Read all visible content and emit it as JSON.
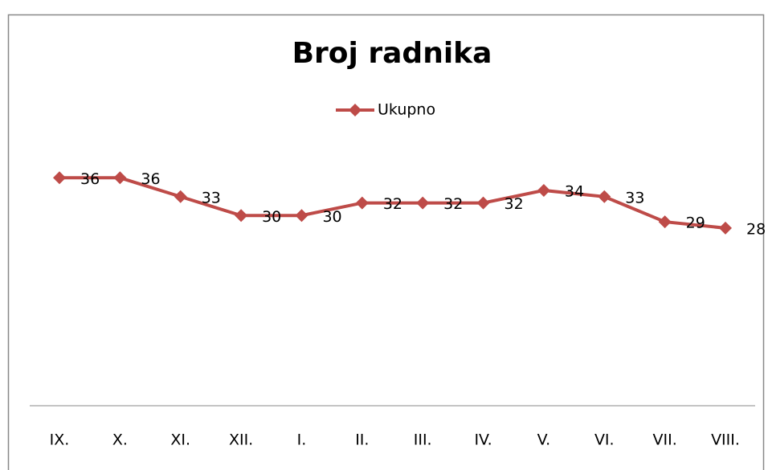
{
  "chart_data": {
    "type": "line",
    "title": "Broj radnika",
    "categories": [
      "IX.",
      "X.",
      "XI.",
      "XII.",
      "I.",
      "II.",
      "III.",
      "IV.",
      "V.",
      "VI.",
      "VII.",
      "VIII."
    ],
    "series": [
      {
        "name": "Ukupno",
        "color": "#be4b48",
        "values": [
          36,
          36,
          33,
          30,
          30,
          32,
          32,
          32,
          34,
          33,
          29,
          28
        ]
      }
    ],
    "ylim": [
      0,
      40
    ],
    "legend": "top"
  }
}
